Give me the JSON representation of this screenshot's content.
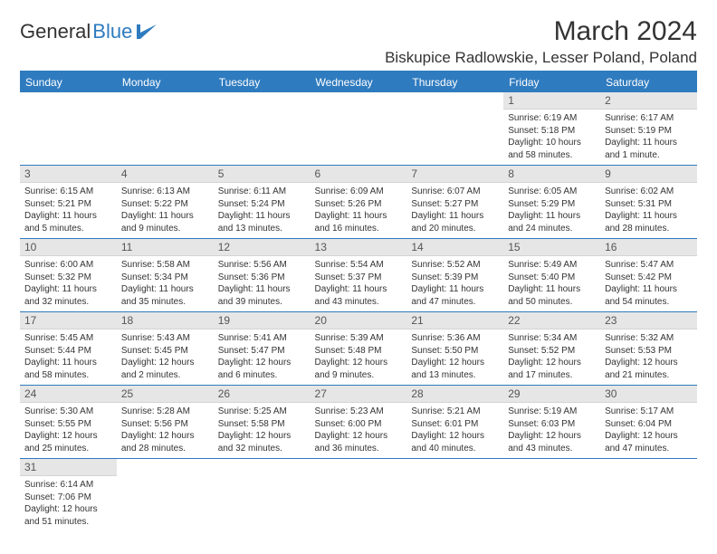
{
  "colors": {
    "brand": "#2f7bbf",
    "daynum_bg": "#e6e6e6",
    "text": "#333333"
  },
  "logo": {
    "text1": "General",
    "text2": "Blue"
  },
  "title": "March 2024",
  "location": "Biskupice Radlowskie, Lesser Poland, Poland",
  "weekdays": [
    "Sunday",
    "Monday",
    "Tuesday",
    "Wednesday",
    "Thursday",
    "Friday",
    "Saturday"
  ],
  "weeks": [
    [
      {
        "n": "",
        "sr": "",
        "ss": "",
        "dl": ""
      },
      {
        "n": "",
        "sr": "",
        "ss": "",
        "dl": ""
      },
      {
        "n": "",
        "sr": "",
        "ss": "",
        "dl": ""
      },
      {
        "n": "",
        "sr": "",
        "ss": "",
        "dl": ""
      },
      {
        "n": "",
        "sr": "",
        "ss": "",
        "dl": ""
      },
      {
        "n": "1",
        "sr": "Sunrise: 6:19 AM",
        "ss": "Sunset: 5:18 PM",
        "dl": "Daylight: 10 hours and 58 minutes."
      },
      {
        "n": "2",
        "sr": "Sunrise: 6:17 AM",
        "ss": "Sunset: 5:19 PM",
        "dl": "Daylight: 11 hours and 1 minute."
      }
    ],
    [
      {
        "n": "3",
        "sr": "Sunrise: 6:15 AM",
        "ss": "Sunset: 5:21 PM",
        "dl": "Daylight: 11 hours and 5 minutes."
      },
      {
        "n": "4",
        "sr": "Sunrise: 6:13 AM",
        "ss": "Sunset: 5:22 PM",
        "dl": "Daylight: 11 hours and 9 minutes."
      },
      {
        "n": "5",
        "sr": "Sunrise: 6:11 AM",
        "ss": "Sunset: 5:24 PM",
        "dl": "Daylight: 11 hours and 13 minutes."
      },
      {
        "n": "6",
        "sr": "Sunrise: 6:09 AM",
        "ss": "Sunset: 5:26 PM",
        "dl": "Daylight: 11 hours and 16 minutes."
      },
      {
        "n": "7",
        "sr": "Sunrise: 6:07 AM",
        "ss": "Sunset: 5:27 PM",
        "dl": "Daylight: 11 hours and 20 minutes."
      },
      {
        "n": "8",
        "sr": "Sunrise: 6:05 AM",
        "ss": "Sunset: 5:29 PM",
        "dl": "Daylight: 11 hours and 24 minutes."
      },
      {
        "n": "9",
        "sr": "Sunrise: 6:02 AM",
        "ss": "Sunset: 5:31 PM",
        "dl": "Daylight: 11 hours and 28 minutes."
      }
    ],
    [
      {
        "n": "10",
        "sr": "Sunrise: 6:00 AM",
        "ss": "Sunset: 5:32 PM",
        "dl": "Daylight: 11 hours and 32 minutes."
      },
      {
        "n": "11",
        "sr": "Sunrise: 5:58 AM",
        "ss": "Sunset: 5:34 PM",
        "dl": "Daylight: 11 hours and 35 minutes."
      },
      {
        "n": "12",
        "sr": "Sunrise: 5:56 AM",
        "ss": "Sunset: 5:36 PM",
        "dl": "Daylight: 11 hours and 39 minutes."
      },
      {
        "n": "13",
        "sr": "Sunrise: 5:54 AM",
        "ss": "Sunset: 5:37 PM",
        "dl": "Daylight: 11 hours and 43 minutes."
      },
      {
        "n": "14",
        "sr": "Sunrise: 5:52 AM",
        "ss": "Sunset: 5:39 PM",
        "dl": "Daylight: 11 hours and 47 minutes."
      },
      {
        "n": "15",
        "sr": "Sunrise: 5:49 AM",
        "ss": "Sunset: 5:40 PM",
        "dl": "Daylight: 11 hours and 50 minutes."
      },
      {
        "n": "16",
        "sr": "Sunrise: 5:47 AM",
        "ss": "Sunset: 5:42 PM",
        "dl": "Daylight: 11 hours and 54 minutes."
      }
    ],
    [
      {
        "n": "17",
        "sr": "Sunrise: 5:45 AM",
        "ss": "Sunset: 5:44 PM",
        "dl": "Daylight: 11 hours and 58 minutes."
      },
      {
        "n": "18",
        "sr": "Sunrise: 5:43 AM",
        "ss": "Sunset: 5:45 PM",
        "dl": "Daylight: 12 hours and 2 minutes."
      },
      {
        "n": "19",
        "sr": "Sunrise: 5:41 AM",
        "ss": "Sunset: 5:47 PM",
        "dl": "Daylight: 12 hours and 6 minutes."
      },
      {
        "n": "20",
        "sr": "Sunrise: 5:39 AM",
        "ss": "Sunset: 5:48 PM",
        "dl": "Daylight: 12 hours and 9 minutes."
      },
      {
        "n": "21",
        "sr": "Sunrise: 5:36 AM",
        "ss": "Sunset: 5:50 PM",
        "dl": "Daylight: 12 hours and 13 minutes."
      },
      {
        "n": "22",
        "sr": "Sunrise: 5:34 AM",
        "ss": "Sunset: 5:52 PM",
        "dl": "Daylight: 12 hours and 17 minutes."
      },
      {
        "n": "23",
        "sr": "Sunrise: 5:32 AM",
        "ss": "Sunset: 5:53 PM",
        "dl": "Daylight: 12 hours and 21 minutes."
      }
    ],
    [
      {
        "n": "24",
        "sr": "Sunrise: 5:30 AM",
        "ss": "Sunset: 5:55 PM",
        "dl": "Daylight: 12 hours and 25 minutes."
      },
      {
        "n": "25",
        "sr": "Sunrise: 5:28 AM",
        "ss": "Sunset: 5:56 PM",
        "dl": "Daylight: 12 hours and 28 minutes."
      },
      {
        "n": "26",
        "sr": "Sunrise: 5:25 AM",
        "ss": "Sunset: 5:58 PM",
        "dl": "Daylight: 12 hours and 32 minutes."
      },
      {
        "n": "27",
        "sr": "Sunrise: 5:23 AM",
        "ss": "Sunset: 6:00 PM",
        "dl": "Daylight: 12 hours and 36 minutes."
      },
      {
        "n": "28",
        "sr": "Sunrise: 5:21 AM",
        "ss": "Sunset: 6:01 PM",
        "dl": "Daylight: 12 hours and 40 minutes."
      },
      {
        "n": "29",
        "sr": "Sunrise: 5:19 AM",
        "ss": "Sunset: 6:03 PM",
        "dl": "Daylight: 12 hours and 43 minutes."
      },
      {
        "n": "30",
        "sr": "Sunrise: 5:17 AM",
        "ss": "Sunset: 6:04 PM",
        "dl": "Daylight: 12 hours and 47 minutes."
      }
    ],
    [
      {
        "n": "31",
        "sr": "Sunrise: 6:14 AM",
        "ss": "Sunset: 7:06 PM",
        "dl": "Daylight: 12 hours and 51 minutes."
      },
      {
        "n": "",
        "sr": "",
        "ss": "",
        "dl": ""
      },
      {
        "n": "",
        "sr": "",
        "ss": "",
        "dl": ""
      },
      {
        "n": "",
        "sr": "",
        "ss": "",
        "dl": ""
      },
      {
        "n": "",
        "sr": "",
        "ss": "",
        "dl": ""
      },
      {
        "n": "",
        "sr": "",
        "ss": "",
        "dl": ""
      },
      {
        "n": "",
        "sr": "",
        "ss": "",
        "dl": ""
      }
    ]
  ]
}
